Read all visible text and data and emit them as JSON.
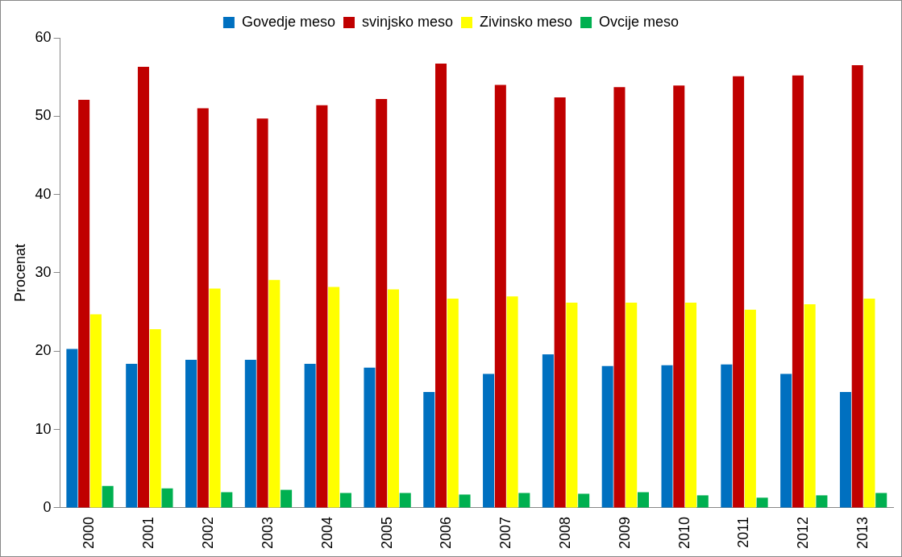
{
  "chart_data": {
    "type": "bar",
    "ylabel": "Procenat",
    "categories": [
      "2000",
      "2001",
      "2002",
      "2003",
      "2004",
      "2005",
      "2006",
      "2007",
      "2008",
      "2009",
      "2010",
      "2011",
      "2012",
      "2013"
    ],
    "series": [
      {
        "name": "Govedje meso",
        "color": "#0070c0",
        "values": [
          20.3,
          18.4,
          18.9,
          18.9,
          18.4,
          17.9,
          14.8,
          17.1,
          19.6,
          18.1,
          18.2,
          18.3,
          17.1,
          14.8
        ]
      },
      {
        "name": "svinjsko meso",
        "color": "#c00000",
        "values": [
          52.1,
          56.3,
          51.0,
          49.7,
          51.4,
          52.2,
          56.7,
          54.0,
          52.4,
          53.7,
          53.9,
          55.1,
          55.2,
          56.5
        ]
      },
      {
        "name": "Zivinsko meso",
        "color": "#ffff00",
        "values": [
          24.7,
          22.8,
          28.0,
          29.1,
          28.2,
          27.9,
          26.7,
          27.0,
          26.2,
          26.2,
          26.2,
          25.3,
          26.0,
          26.7
        ]
      },
      {
        "name": "Ovcije meso",
        "color": "#00b050",
        "values": [
          2.8,
          2.5,
          2.0,
          2.3,
          1.9,
          1.9,
          1.7,
          1.9,
          1.8,
          2.0,
          1.6,
          1.3,
          1.6,
          1.9
        ]
      }
    ],
    "ylim": [
      0,
      60
    ],
    "yticks": [
      0,
      10,
      20,
      30,
      40,
      50,
      60
    ],
    "grid": false,
    "legend": "top"
  }
}
